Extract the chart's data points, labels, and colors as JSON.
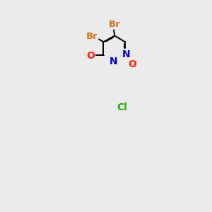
{
  "background_color": "#ebebeb",
  "bond_color": "#000000",
  "atom_colors": {
    "Br": "#cc7722",
    "O": "#ff2200",
    "N": "#0000cc",
    "Cl": "#22aa00",
    "C": "#000000"
  },
  "figsize": [
    3.0,
    3.0
  ],
  "dpi": 100,
  "lw": 1.4,
  "fontsize": 9.5
}
